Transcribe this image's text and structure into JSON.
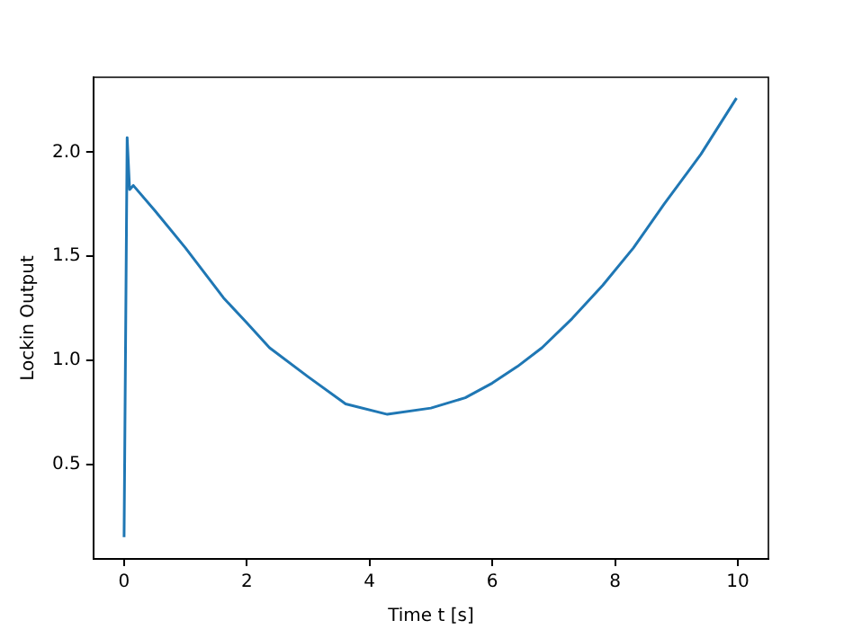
{
  "chart_data": {
    "type": "line",
    "xlabel": "Time t [s]",
    "ylabel": "Lockin Output",
    "x": [
      0,
      0.05,
      0.09,
      0.15,
      0.5,
      1,
      1.62,
      2,
      2.37,
      3,
      3.61,
      4.29,
      5,
      5.56,
      6,
      6.41,
      6.81,
      7.3,
      7.8,
      8.3,
      8.8,
      9.4,
      9.98
    ],
    "series": [
      {
        "color": "#1f77b4",
        "values": [
          0.15,
          2.07,
          1.82,
          1.84,
          1.72,
          1.54,
          1.3,
          1.18,
          1.06,
          0.92,
          0.79,
          0.74,
          0.77,
          0.82,
          0.89,
          0.97,
          1.06,
          1.2,
          1.36,
          1.54,
          1.75,
          1.99,
          2.26
        ]
      }
    ],
    "xlim": [
      -0.5,
      10.5
    ],
    "ylim": [
      0.045,
      2.36
    ],
    "xticks": [
      0,
      2,
      4,
      6,
      8,
      10
    ],
    "yticks": [
      {
        "value": 0.5,
        "label": "0.5"
      },
      {
        "value": 1.0,
        "label": "1.0"
      },
      {
        "value": 1.5,
        "label": "1.5"
      },
      {
        "value": 2.0,
        "label": "2.0"
      }
    ],
    "grid": false,
    "legend": false,
    "marker": "none",
    "line_style": "solid"
  }
}
